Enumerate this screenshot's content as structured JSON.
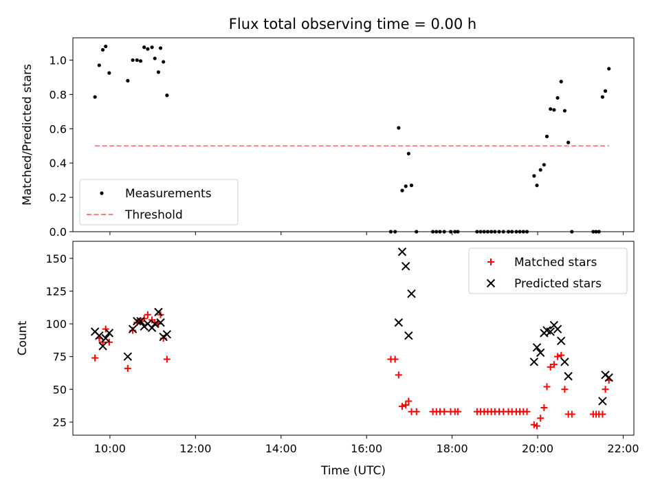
{
  "chart_data": [
    {
      "type": "scatter",
      "title": "Flux total observing time = 0.00 h",
      "ylabel": "Matched/Predicted stars",
      "xlabel": "",
      "xlim": [
        "09:08",
        "22:15"
      ],
      "ylim": [
        0,
        1.13
      ],
      "yticks": [
        0.0,
        0.2,
        0.4,
        0.6,
        0.8,
        1.0
      ],
      "xticks": [
        "10:00",
        "12:00",
        "14:00",
        "16:00",
        "18:00",
        "20:00",
        "22:00"
      ],
      "show_xtick_labels": false,
      "grid": false,
      "legend": {
        "position": "lower-left",
        "entries": [
          "Measurements",
          "Threshold"
        ]
      },
      "series": [
        {
          "name": "Measurements",
          "marker": "dot",
          "color": "#000000",
          "points": [
            [
              "09:39",
              0.785
            ],
            [
              "09:45",
              0.97
            ],
            [
              "09:50",
              1.06
            ],
            [
              "09:54",
              1.08
            ],
            [
              "09:59",
              0.925
            ],
            [
              "10:25",
              0.88
            ],
            [
              "10:32",
              1.0
            ],
            [
              "10:38",
              1.0
            ],
            [
              "10:43",
              0.995
            ],
            [
              "10:48",
              1.075
            ],
            [
              "10:53",
              1.065
            ],
            [
              "10:59",
              1.075
            ],
            [
              "11:03",
              1.01
            ],
            [
              "11:08",
              0.93
            ],
            [
              "11:11",
              1.07
            ],
            [
              "11:15",
              0.99
            ],
            [
              "11:20",
              0.795
            ],
            [
              "16:34",
              0.0
            ],
            [
              "16:40",
              0.0
            ],
            [
              "16:45",
              0.605
            ],
            [
              "16:50",
              0.24
            ],
            [
              "16:55",
              0.265
            ],
            [
              "16:59",
              0.455
            ],
            [
              "17:03",
              0.27
            ],
            [
              "17:10",
              0.0
            ],
            [
              "17:33",
              0.0
            ],
            [
              "17:38",
              0.0
            ],
            [
              "17:43",
              0.0
            ],
            [
              "17:49",
              0.0
            ],
            [
              "17:58",
              0.0
            ],
            [
              "18:04",
              0.0
            ],
            [
              "18:08",
              0.0
            ],
            [
              "18:35",
              0.0
            ],
            [
              "18:40",
              0.0
            ],
            [
              "18:45",
              0.0
            ],
            [
              "18:50",
              0.0
            ],
            [
              "18:55",
              0.0
            ],
            [
              "19:00",
              0.0
            ],
            [
              "19:06",
              0.0
            ],
            [
              "19:12",
              0.0
            ],
            [
              "19:19",
              0.0
            ],
            [
              "19:24",
              0.0
            ],
            [
              "19:30",
              0.0
            ],
            [
              "19:35",
              0.0
            ],
            [
              "19:40",
              0.0
            ],
            [
              "19:45",
              0.0
            ],
            [
              "19:55",
              0.325
            ],
            [
              "19:59",
              0.27
            ],
            [
              "20:04",
              0.36
            ],
            [
              "20:09",
              0.39
            ],
            [
              "20:13",
              0.555
            ],
            [
              "20:18",
              0.715
            ],
            [
              "20:23",
              0.71
            ],
            [
              "20:28",
              0.78
            ],
            [
              "20:33",
              0.875
            ],
            [
              "20:38",
              0.705
            ],
            [
              "20:43",
              0.52
            ],
            [
              "20:48",
              0.0
            ],
            [
              "21:18",
              0.0
            ],
            [
              "21:22",
              0.0
            ],
            [
              "21:26",
              0.0
            ],
            [
              "21:31",
              0.785
            ],
            [
              "21:35",
              0.82
            ],
            [
              "21:40",
              0.95
            ]
          ]
        },
        {
          "name": "Threshold",
          "style": "dashed",
          "color": "#ff7f7f",
          "points": [
            [
              "09:39",
              0.5
            ],
            [
              "21:40",
              0.5
            ]
          ]
        }
      ]
    },
    {
      "type": "scatter",
      "title": "",
      "ylabel": "Count",
      "xlabel": "Time (UTC)",
      "xlim": [
        "09:08",
        "22:15"
      ],
      "ylim": [
        15,
        163
      ],
      "yticks": [
        25,
        50,
        75,
        100,
        125,
        150
      ],
      "xticks": [
        "10:00",
        "12:00",
        "14:00",
        "16:00",
        "18:00",
        "20:00",
        "22:00"
      ],
      "show_xtick_labels": true,
      "grid": false,
      "legend": {
        "position": "upper-right",
        "entries": [
          "Matched stars",
          "Predicted stars"
        ]
      },
      "series": [
        {
          "name": "Matched stars",
          "marker": "plus",
          "color": "#ff0000",
          "points": [
            [
              "09:39",
              74
            ],
            [
              "09:45",
              89
            ],
            [
              "09:50",
              86
            ],
            [
              "09:54",
              96
            ],
            [
              "09:59",
              86
            ],
            [
              "10:25",
              66
            ],
            [
              "10:32",
              95
            ],
            [
              "10:38",
              101
            ],
            [
              "10:43",
              102
            ],
            [
              "10:48",
              104
            ],
            [
              "10:53",
              107
            ],
            [
              "10:59",
              103
            ],
            [
              "11:03",
              101
            ],
            [
              "11:08",
              100
            ],
            [
              "11:11",
              107
            ],
            [
              "11:15",
              89
            ],
            [
              "11:20",
              73
            ],
            [
              "16:34",
              73
            ],
            [
              "16:40",
              73
            ],
            [
              "16:45",
              61
            ],
            [
              "16:50",
              37
            ],
            [
              "16:55",
              38
            ],
            [
              "16:59",
              41
            ],
            [
              "17:03",
              33
            ],
            [
              "17:10",
              33
            ],
            [
              "17:33",
              33
            ],
            [
              "17:38",
              33
            ],
            [
              "17:43",
              33
            ],
            [
              "17:49",
              33
            ],
            [
              "17:58",
              33
            ],
            [
              "18:04",
              33
            ],
            [
              "18:08",
              33
            ],
            [
              "18:35",
              33
            ],
            [
              "18:40",
              33
            ],
            [
              "18:45",
              33
            ],
            [
              "18:50",
              33
            ],
            [
              "18:55",
              33
            ],
            [
              "19:00",
              33
            ],
            [
              "19:06",
              33
            ],
            [
              "19:12",
              33
            ],
            [
              "19:19",
              33
            ],
            [
              "19:24",
              33
            ],
            [
              "19:30",
              33
            ],
            [
              "19:35",
              33
            ],
            [
              "19:40",
              33
            ],
            [
              "19:45",
              33
            ],
            [
              "19:55",
              23
            ],
            [
              "19:59",
              22
            ],
            [
              "20:04",
              28
            ],
            [
              "20:09",
              36
            ],
            [
              "20:13",
              52
            ],
            [
              "20:18",
              67
            ],
            [
              "20:23",
              69
            ],
            [
              "20:28",
              75
            ],
            [
              "20:33",
              76
            ],
            [
              "20:38",
              50
            ],
            [
              "20:43",
              31
            ],
            [
              "20:48",
              31
            ],
            [
              "21:18",
              31
            ],
            [
              "21:22",
              31
            ],
            [
              "21:26",
              31
            ],
            [
              "21:31",
              31
            ],
            [
              "21:35",
              50
            ],
            [
              "21:40",
              57
            ]
          ]
        },
        {
          "name": "Predicted stars",
          "marker": "x",
          "color": "#000000",
          "points": [
            [
              "09:39",
              94
            ],
            [
              "09:45",
              91
            ],
            [
              "09:50",
              83
            ],
            [
              "09:54",
              89
            ],
            [
              "09:59",
              93
            ],
            [
              "10:25",
              75
            ],
            [
              "10:32",
              96
            ],
            [
              "10:38",
              102
            ],
            [
              "10:43",
              102
            ],
            [
              "10:48",
              98
            ],
            [
              "10:53",
              100
            ],
            [
              "10:59",
              97
            ],
            [
              "11:03",
              100
            ],
            [
              "11:08",
              109
            ],
            [
              "11:11",
              101
            ],
            [
              "11:15",
              90
            ],
            [
              "11:20",
              92
            ],
            [
              "16:45",
              101
            ],
            [
              "16:50",
              155
            ],
            [
              "16:55",
              144
            ],
            [
              "16:59",
              91
            ],
            [
              "17:03",
              123
            ],
            [
              "19:55",
              71
            ],
            [
              "19:59",
              82
            ],
            [
              "20:04",
              78
            ],
            [
              "20:09",
              93
            ],
            [
              "20:13",
              95
            ],
            [
              "20:18",
              94
            ],
            [
              "20:23",
              99
            ],
            [
              "20:28",
              96
            ],
            [
              "20:33",
              87
            ],
            [
              "20:38",
              71
            ],
            [
              "20:43",
              60
            ],
            [
              "21:31",
              41
            ],
            [
              "21:35",
              61
            ],
            [
              "21:40",
              59
            ]
          ]
        }
      ]
    }
  ]
}
